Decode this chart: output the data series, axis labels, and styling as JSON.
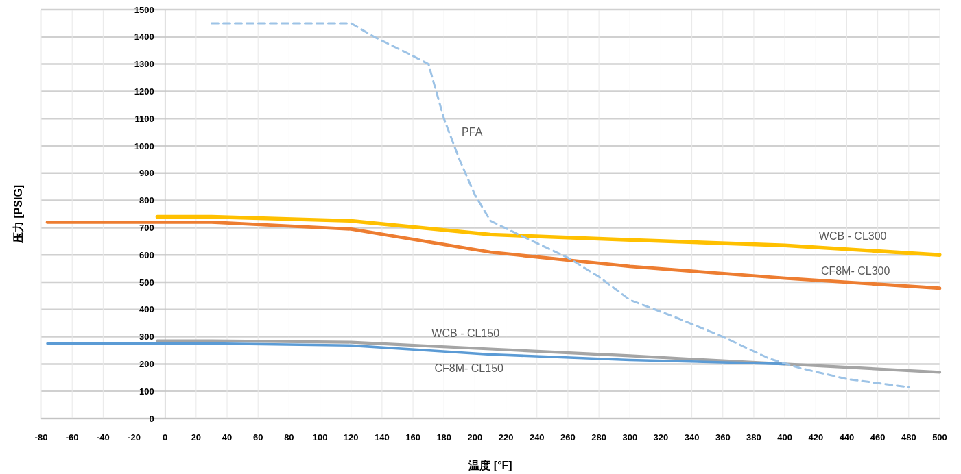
{
  "chart_data": {
    "type": "line",
    "xlabel": "温度 [°F]",
    "ylabel": "压力 [PSIG]",
    "xlim": [
      -80,
      500
    ],
    "ylim": [
      0,
      1500
    ],
    "xticks": [
      -80,
      -60,
      -40,
      -20,
      0,
      20,
      40,
      60,
      80,
      100,
      120,
      140,
      160,
      180,
      200,
      220,
      240,
      260,
      280,
      300,
      320,
      340,
      360,
      380,
      400,
      420,
      440,
      460,
      480,
      500
    ],
    "yticks": [
      0,
      100,
      200,
      300,
      400,
      500,
      600,
      700,
      800,
      900,
      1000,
      1100,
      1200,
      1300,
      1400,
      1500
    ],
    "grid": true,
    "series": [
      {
        "name": "WCB - CL300",
        "color": "#ffc000",
        "line_style": "solid",
        "x": [
          -5,
          30,
          120,
          210,
          300,
          400,
          500
        ],
        "values": [
          740,
          740,
          725,
          675,
          655,
          635,
          600
        ]
      },
      {
        "name": "CF8M- CL300",
        "color": "#ed7d31",
        "line_style": "solid",
        "x": [
          -76,
          30,
          120,
          210,
          300,
          400,
          500
        ],
        "values": [
          720,
          720,
          695,
          610,
          558,
          515,
          478
        ]
      },
      {
        "name": "WCB - CL150",
        "color": "#a5a5a5",
        "line_style": "solid",
        "x": [
          -5,
          30,
          120,
          210,
          300,
          400,
          500
        ],
        "values": [
          285,
          285,
          280,
          255,
          230,
          200,
          170
        ]
      },
      {
        "name": "CF8M- CL150",
        "color": "#5b9bd5",
        "line_style": "solid",
        "x": [
          -76,
          30,
          120,
          210,
          300,
          400
        ],
        "values": [
          275,
          275,
          268,
          235,
          215,
          200
        ]
      },
      {
        "name": "PFA",
        "color": "#9dc3e6",
        "line_style": "dashed",
        "x": [
          30,
          120,
          135,
          160,
          170,
          180,
          190,
          200,
          210,
          230,
          260,
          280,
          300,
          330,
          360,
          390,
          410,
          440,
          480
        ],
        "values": [
          1450,
          1450,
          1400,
          1330,
          1300,
          1100,
          950,
          820,
          725,
          670,
          590,
          520,
          435,
          370,
          300,
          220,
          185,
          145,
          115
        ]
      }
    ]
  }
}
